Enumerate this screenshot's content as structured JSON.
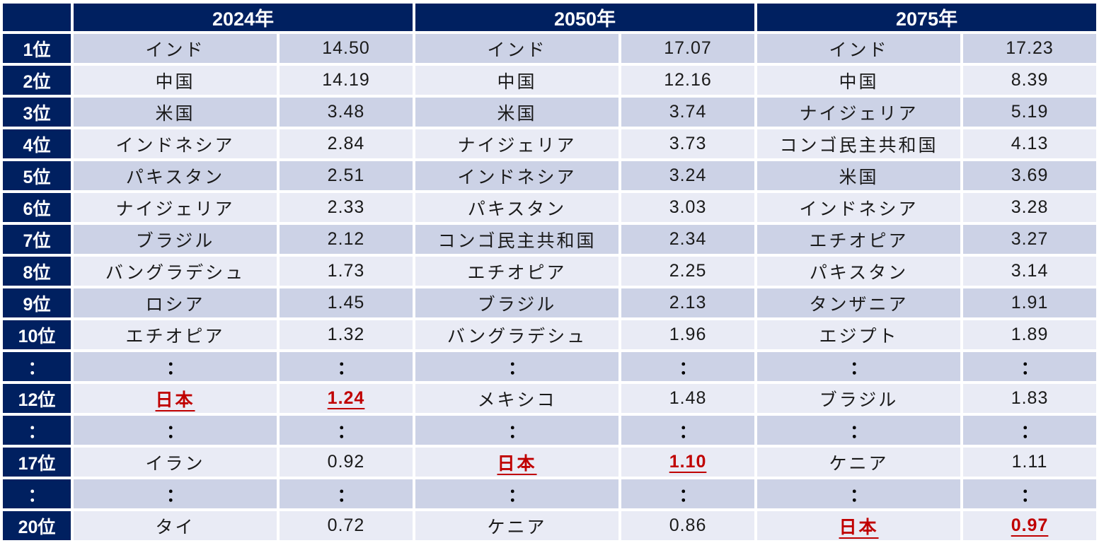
{
  "colors": {
    "header_navy": "#002060",
    "band_dark": "#ccd2e6",
    "band_light": "#e9ebf5",
    "highlight_red": "#c00000",
    "text": "#1a1a1a"
  },
  "table": {
    "corner_label": "",
    "year_headers": [
      "2024年",
      "2050年",
      "2075年"
    ],
    "rows": [
      {
        "rank": "1位",
        "is_dots": false,
        "cells": [
          {
            "country": "インド",
            "value": "14.50"
          },
          {
            "country": "インド",
            "value": "17.07"
          },
          {
            "country": "インド",
            "value": "17.23"
          }
        ]
      },
      {
        "rank": "2位",
        "is_dots": false,
        "cells": [
          {
            "country": "中国",
            "value": "14.19"
          },
          {
            "country": "中国",
            "value": "12.16"
          },
          {
            "country": "中国",
            "value": "8.39"
          }
        ]
      },
      {
        "rank": "3位",
        "is_dots": false,
        "cells": [
          {
            "country": "米国",
            "value": "3.48"
          },
          {
            "country": "米国",
            "value": "3.74"
          },
          {
            "country": "ナイジェリア",
            "value": "5.19"
          }
        ]
      },
      {
        "rank": "4位",
        "is_dots": false,
        "cells": [
          {
            "country": "インドネシア",
            "value": "2.84"
          },
          {
            "country": "ナイジェリア",
            "value": "3.73"
          },
          {
            "country": "コンゴ民主共和国",
            "value": "4.13"
          }
        ]
      },
      {
        "rank": "5位",
        "is_dots": false,
        "cells": [
          {
            "country": "パキスタン",
            "value": "2.51"
          },
          {
            "country": "インドネシア",
            "value": "3.24"
          },
          {
            "country": "米国",
            "value": "3.69"
          }
        ]
      },
      {
        "rank": "6位",
        "is_dots": false,
        "cells": [
          {
            "country": "ナイジェリア",
            "value": "2.33"
          },
          {
            "country": "パキスタン",
            "value": "3.03"
          },
          {
            "country": "インドネシア",
            "value": "3.28"
          }
        ]
      },
      {
        "rank": "7位",
        "is_dots": false,
        "cells": [
          {
            "country": "ブラジル",
            "value": "2.12"
          },
          {
            "country": "コンゴ民主共和国",
            "value": "2.34"
          },
          {
            "country": "エチオピア",
            "value": "3.27"
          }
        ]
      },
      {
        "rank": "8位",
        "is_dots": false,
        "cells": [
          {
            "country": "バングラデシュ",
            "value": "1.73"
          },
          {
            "country": "エチオピア",
            "value": "2.25"
          },
          {
            "country": "パキスタン",
            "value": "3.14"
          }
        ]
      },
      {
        "rank": "9位",
        "is_dots": false,
        "cells": [
          {
            "country": "ロシア",
            "value": "1.45"
          },
          {
            "country": "ブラジル",
            "value": "2.13"
          },
          {
            "country": "タンザニア",
            "value": "1.91"
          }
        ]
      },
      {
        "rank": "10位",
        "is_dots": false,
        "cells": [
          {
            "country": "エチオピア",
            "value": "1.32"
          },
          {
            "country": "バングラデシュ",
            "value": "1.96"
          },
          {
            "country": "エジプト",
            "value": "1.89"
          }
        ]
      },
      {
        "rank": "：",
        "is_dots": true,
        "cells": [
          {
            "country": "：",
            "value": "："
          },
          {
            "country": "：",
            "value": "："
          },
          {
            "country": "：",
            "value": "："
          }
        ]
      },
      {
        "rank": "12位",
        "is_dots": false,
        "cells": [
          {
            "country": "日本",
            "value": "1.24",
            "highlight": true
          },
          {
            "country": "メキシコ",
            "value": "1.48"
          },
          {
            "country": "ブラジル",
            "value": "1.83"
          }
        ]
      },
      {
        "rank": "：",
        "is_dots": true,
        "cells": [
          {
            "country": "：",
            "value": "："
          },
          {
            "country": "：",
            "value": "："
          },
          {
            "country": "：",
            "value": "："
          }
        ]
      },
      {
        "rank": "17位",
        "is_dots": false,
        "cells": [
          {
            "country": "イラン",
            "value": "0.92"
          },
          {
            "country": "日本",
            "value": "1.10",
            "highlight": true
          },
          {
            "country": "ケニア",
            "value": "1.11"
          }
        ]
      },
      {
        "rank": "：",
        "is_dots": true,
        "cells": [
          {
            "country": "：",
            "value": "："
          },
          {
            "country": "：",
            "value": "："
          },
          {
            "country": "：",
            "value": "："
          }
        ]
      },
      {
        "rank": "20位",
        "is_dots": false,
        "cells": [
          {
            "country": "タイ",
            "value": "0.72"
          },
          {
            "country": "ケニア",
            "value": "0.86"
          },
          {
            "country": "日本",
            "value": "0.97",
            "highlight": true
          }
        ]
      }
    ]
  },
  "chart_data": {
    "type": "table",
    "years": [
      "2024年",
      "2050年",
      "2075年"
    ],
    "rank_labels": [
      "1位",
      "2位",
      "3位",
      "4位",
      "5位",
      "6位",
      "7位",
      "8位",
      "9位",
      "10位",
      "12位",
      "17位",
      "20位"
    ],
    "rankings": {
      "2024年": [
        {
          "rank": 1,
          "country": "インド",
          "value": 14.5
        },
        {
          "rank": 2,
          "country": "中国",
          "value": 14.19
        },
        {
          "rank": 3,
          "country": "米国",
          "value": 3.48
        },
        {
          "rank": 4,
          "country": "インドネシア",
          "value": 2.84
        },
        {
          "rank": 5,
          "country": "パキスタン",
          "value": 2.51
        },
        {
          "rank": 6,
          "country": "ナイジェリア",
          "value": 2.33
        },
        {
          "rank": 7,
          "country": "ブラジル",
          "value": 2.12
        },
        {
          "rank": 8,
          "country": "バングラデシュ",
          "value": 1.73
        },
        {
          "rank": 9,
          "country": "ロシア",
          "value": 1.45
        },
        {
          "rank": 10,
          "country": "エチオピア",
          "value": 1.32
        },
        {
          "rank": 12,
          "country": "日本",
          "value": 1.24,
          "highlighted": true
        },
        {
          "rank": 17,
          "country": "イラン",
          "value": 0.92
        },
        {
          "rank": 20,
          "country": "タイ",
          "value": 0.72
        }
      ],
      "2050年": [
        {
          "rank": 1,
          "country": "インド",
          "value": 17.07
        },
        {
          "rank": 2,
          "country": "中国",
          "value": 12.16
        },
        {
          "rank": 3,
          "country": "米国",
          "value": 3.74
        },
        {
          "rank": 4,
          "country": "ナイジェリア",
          "value": 3.73
        },
        {
          "rank": 5,
          "country": "インドネシア",
          "value": 3.24
        },
        {
          "rank": 6,
          "country": "パキスタン",
          "value": 3.03
        },
        {
          "rank": 7,
          "country": "コンゴ民主共和国",
          "value": 2.34
        },
        {
          "rank": 8,
          "country": "エチオピア",
          "value": 2.25
        },
        {
          "rank": 9,
          "country": "ブラジル",
          "value": 2.13
        },
        {
          "rank": 10,
          "country": "バングラデシュ",
          "value": 1.96
        },
        {
          "rank": 12,
          "country": "メキシコ",
          "value": 1.48
        },
        {
          "rank": 17,
          "country": "日本",
          "value": 1.1,
          "highlighted": true
        },
        {
          "rank": 20,
          "country": "ケニア",
          "value": 0.86
        }
      ],
      "2075年": [
        {
          "rank": 1,
          "country": "インド",
          "value": 17.23
        },
        {
          "rank": 2,
          "country": "中国",
          "value": 8.39
        },
        {
          "rank": 3,
          "country": "ナイジェリア",
          "value": 5.19
        },
        {
          "rank": 4,
          "country": "コンゴ民主共和国",
          "value": 4.13
        },
        {
          "rank": 5,
          "country": "米国",
          "value": 3.69
        },
        {
          "rank": 6,
          "country": "インドネシア",
          "value": 3.28
        },
        {
          "rank": 7,
          "country": "エチオピア",
          "value": 3.27
        },
        {
          "rank": 8,
          "country": "パキスタン",
          "value": 3.14
        },
        {
          "rank": 9,
          "country": "タンザニア",
          "value": 1.91
        },
        {
          "rank": 10,
          "country": "エジプト",
          "value": 1.89
        },
        {
          "rank": 12,
          "country": "ブラジル",
          "value": 1.83
        },
        {
          "rank": 17,
          "country": "ケニア",
          "value": 1.11
        },
        {
          "rank": 20,
          "country": "日本",
          "value": 0.97,
          "highlighted": true
        }
      ]
    }
  }
}
